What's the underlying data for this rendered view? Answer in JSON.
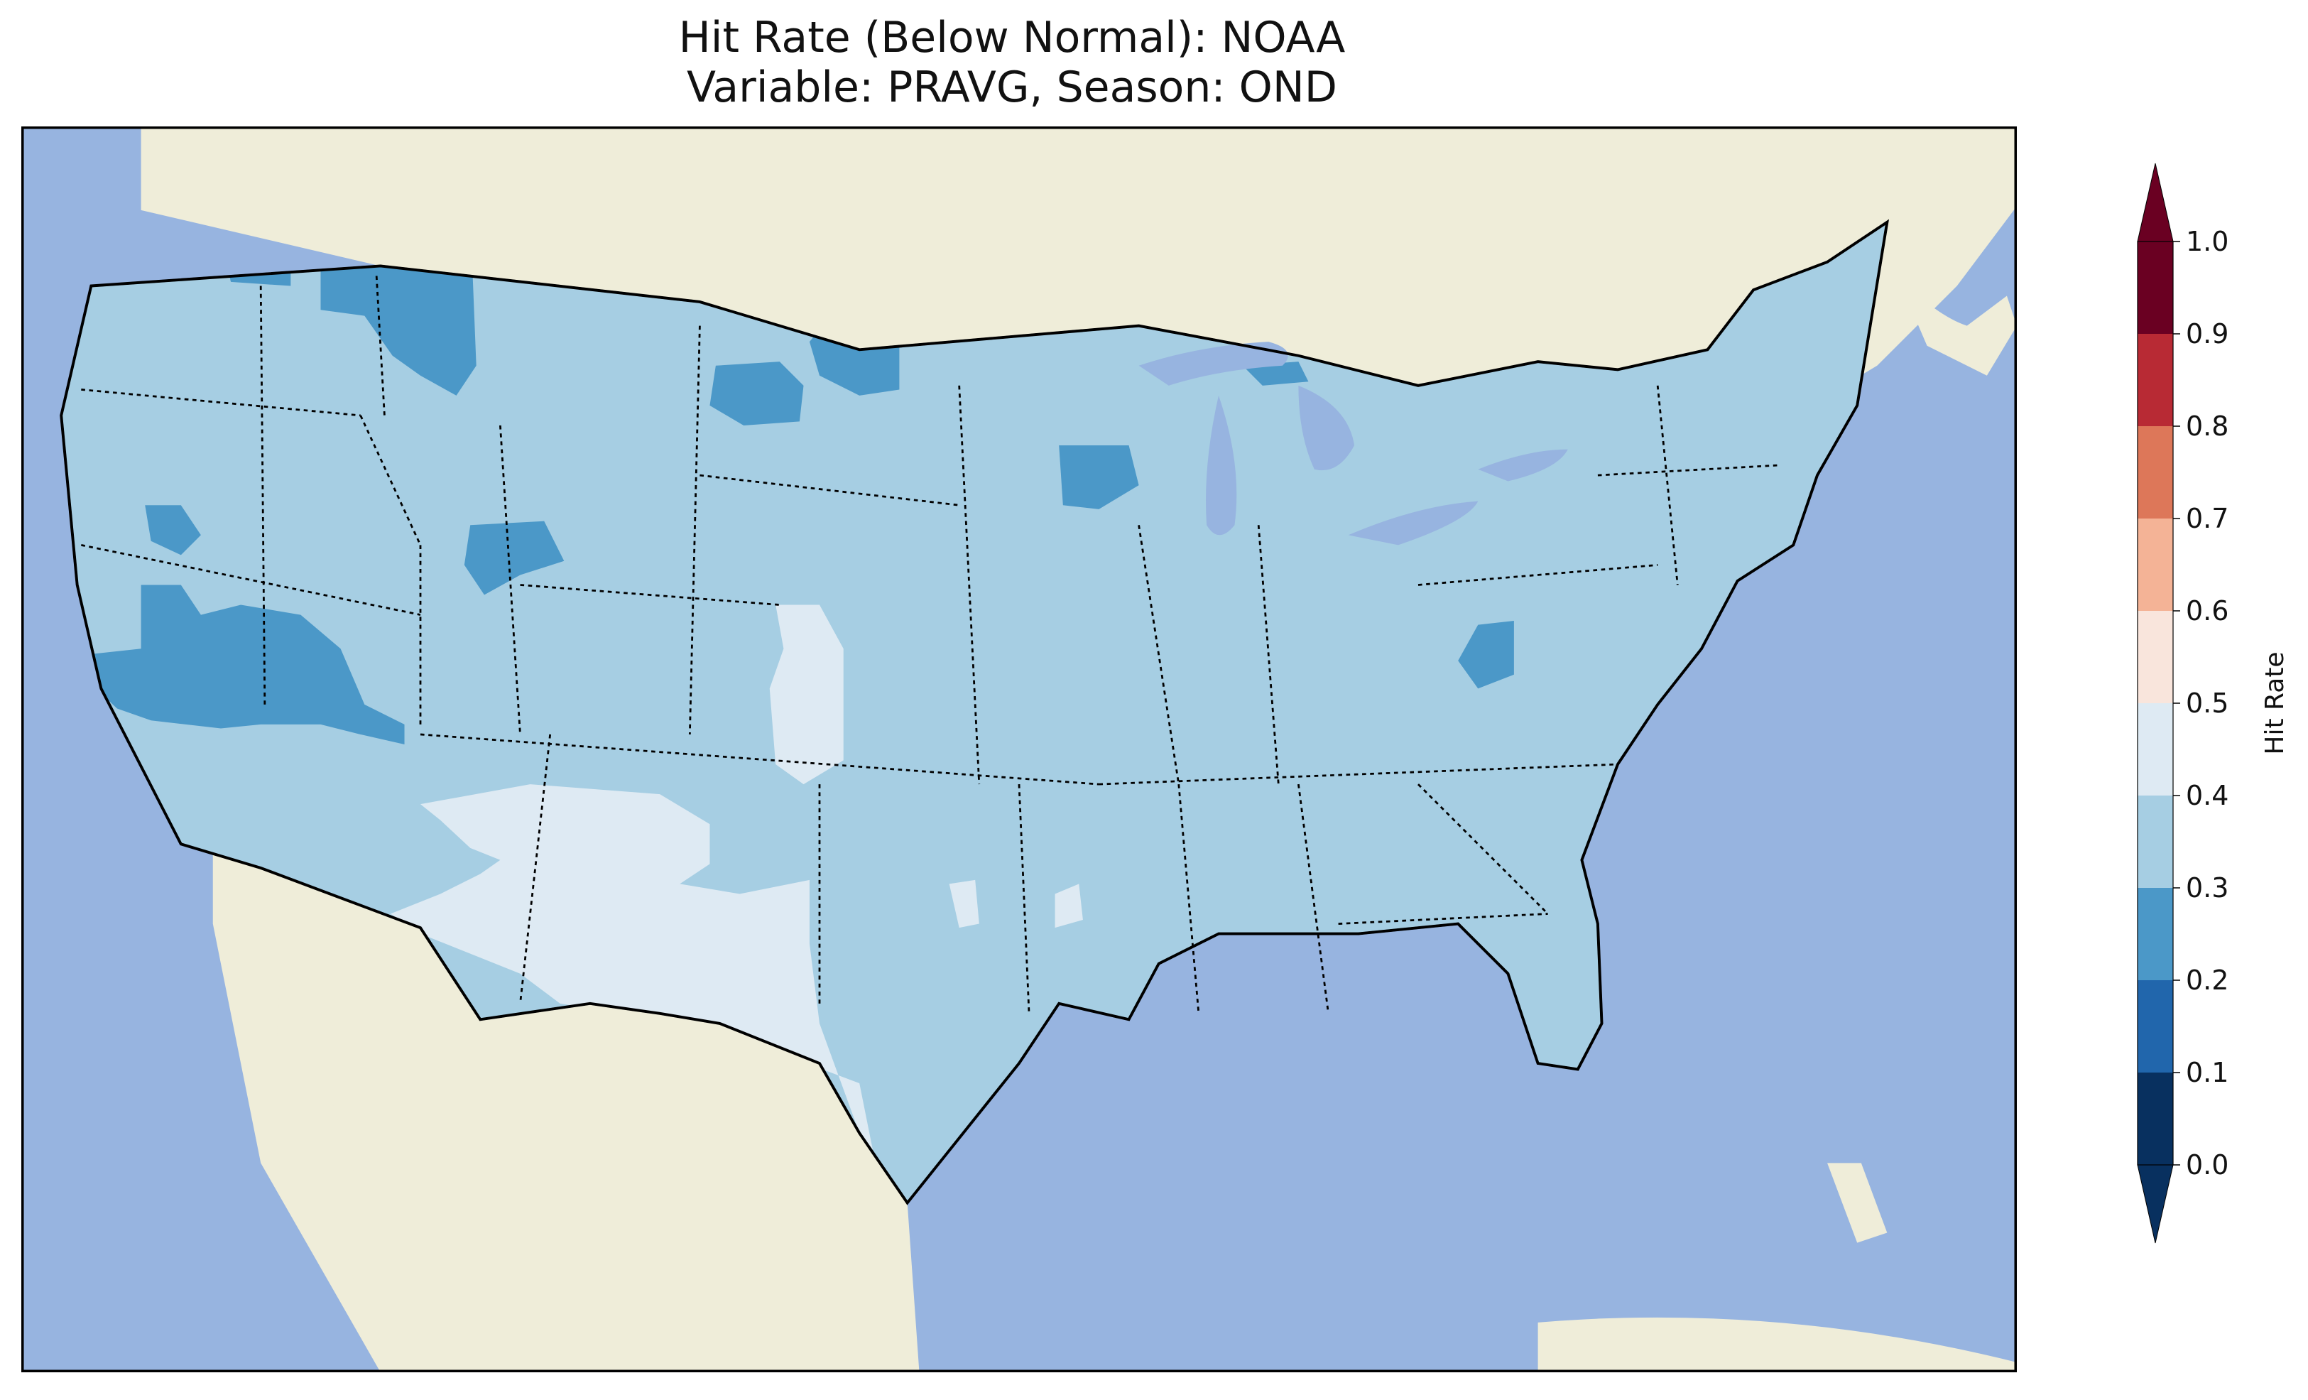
{
  "title": {
    "line1": "Hit Rate (Below Normal): NOAA",
    "line2": "Variable: PRAVG, Season: OND"
  },
  "colors": {
    "ocean": "#97b4e0",
    "land": "#efedd9",
    "lake": "#97b4e0",
    "border": "#000000"
  },
  "colorbar": {
    "label": "Hit Rate",
    "ticks": [
      "0.0",
      "0.1",
      "0.2",
      "0.3",
      "0.4",
      "0.5",
      "0.6",
      "0.7",
      "0.8",
      "0.9",
      "1.0"
    ],
    "bins": [
      {
        "from": 0.0,
        "to": 0.1,
        "color": "#08305f"
      },
      {
        "from": 0.1,
        "to": 0.2,
        "color": "#2166ac"
      },
      {
        "from": 0.2,
        "to": 0.3,
        "color": "#4b98c8"
      },
      {
        "from": 0.3,
        "to": 0.4,
        "color": "#a6cee3"
      },
      {
        "from": 0.4,
        "to": 0.5,
        "color": "#deeaf3"
      },
      {
        "from": 0.5,
        "to": 0.6,
        "color": "#f9e5dc"
      },
      {
        "from": 0.6,
        "to": 0.7,
        "color": "#f4b396"
      },
      {
        "from": 0.7,
        "to": 0.8,
        "color": "#dd7759"
      },
      {
        "from": 0.8,
        "to": 0.9,
        "color": "#b82a34"
      },
      {
        "from": 0.9,
        "to": 1.0,
        "color": "#6a0022"
      }
    ],
    "extend_under_color": "#08305f",
    "extend_over_color": "#6a0022"
  },
  "chart_data": {
    "type": "heatmap",
    "title": "Hit Rate (Below Normal): NOAA\nVariable: PRAVG, Season: OND",
    "domain": "Contiguous United States",
    "colorbar_label": "Hit Rate",
    "vmin": 0.0,
    "vmax": 1.0,
    "bin_width": 0.1,
    "dominant_value_range": [
      0.3,
      0.4
    ],
    "regions": [
      {
        "name": "Most of CONUS",
        "range": [
          0.3,
          0.4
        ]
      },
      {
        "name": "Idaho / western Montana / Washington",
        "range": [
          0.2,
          0.3
        ]
      },
      {
        "name": "Nevada / central California",
        "range": [
          0.2,
          0.3
        ]
      },
      {
        "name": "Eastern Montana / North Dakota",
        "range": [
          0.2,
          0.3
        ]
      },
      {
        "name": "Northern Wyoming / Utah",
        "range": [
          0.2,
          0.3
        ]
      },
      {
        "name": "Wisconsin / Minnesota",
        "range": [
          0.2,
          0.3
        ]
      },
      {
        "name": "West Virginia",
        "range": [
          0.2,
          0.3
        ]
      },
      {
        "name": "New Mexico / western Texas",
        "range": [
          0.4,
          0.5
        ]
      },
      {
        "name": "Northeastern Colorado / western Nebraska / Kansas",
        "range": [
          0.4,
          0.5
        ]
      },
      {
        "name": "Southern Arizona",
        "range": [
          0.4,
          0.5
        ]
      }
    ]
  }
}
